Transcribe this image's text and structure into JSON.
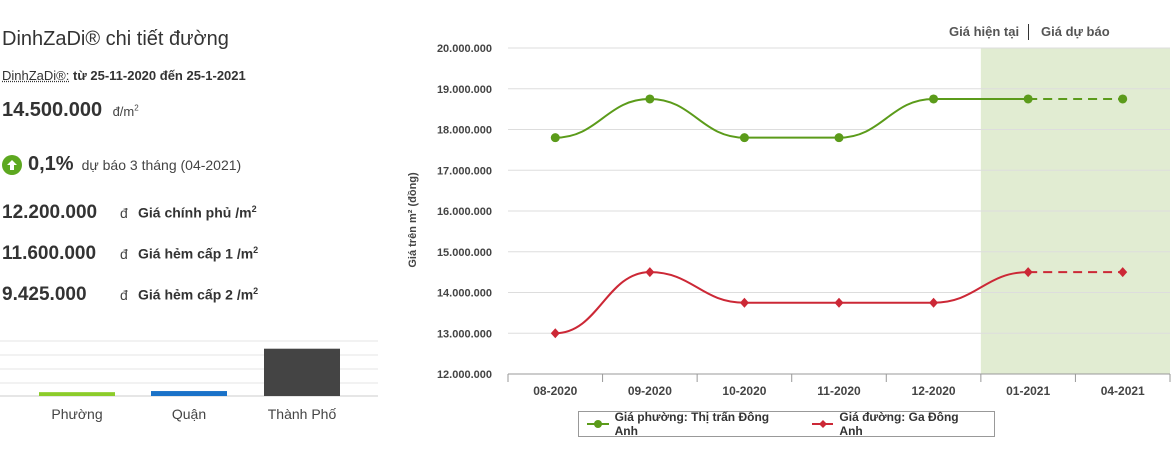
{
  "summary": {
    "title": "DinhZaDi® chi tiết đường",
    "period_brand": "DinhZaDi®:",
    "period_range": "từ 25-11-2020 đến 25-1-2021",
    "price": "14.500.000",
    "price_unit": "đ/m",
    "forecast_pct": "0,1%",
    "forecast_note": "dự báo 3 tháng (04-2021)"
  },
  "reference_prices": [
    {
      "value": "12.200.000",
      "currency": "đ",
      "label": "Giá chính phủ /m"
    },
    {
      "value": "11.600.000",
      "currency": "đ",
      "label": "Giá hẻm cấp 1 /m"
    },
    {
      "value": "9.425.000",
      "currency": "đ",
      "label": "Giá hẻm cấp 2 /m"
    }
  ],
  "level_chart": {
    "categories": [
      "Phường",
      "Quận",
      "Thành Phố"
    ],
    "values": [
      0.07,
      0.09,
      0.86
    ],
    "colors": [
      "#8ccc2a",
      "#1a72c8",
      "#444444"
    ]
  },
  "toggles": {
    "current": "Giá hiện tại",
    "forecast": "Giá dự báo"
  },
  "chart_data": {
    "type": "line",
    "categories": [
      "08-2020",
      "09-2020",
      "10-2020",
      "11-2020",
      "12-2020",
      "01-2021",
      "04-2021"
    ],
    "ylabel": "Giá trên m² (đồng)",
    "ylim": [
      12000000,
      20000000
    ],
    "yticks": [
      "12.000.000",
      "13.000.000",
      "14.000.000",
      "15.000.000",
      "16.000.000",
      "17.000.000",
      "18.000.000",
      "19.000.000",
      "20.000.000"
    ],
    "forecast_from_index": 5,
    "forecast_band_color": "#e1ecd2",
    "series": [
      {
        "name": "Giá phường: Thị trấn Đông Anh",
        "color": "#5b9b1a",
        "marker": "circle",
        "values": [
          17800000,
          18750000,
          17800000,
          17800000,
          18750000,
          18750000,
          18750000
        ]
      },
      {
        "name": "Giá đường: Ga Đông Anh",
        "color": "#cc2836",
        "marker": "diamond",
        "values": [
          13000000,
          14500000,
          13750000,
          13750000,
          13750000,
          14500000,
          14500000
        ]
      }
    ],
    "legend": "bottom"
  }
}
